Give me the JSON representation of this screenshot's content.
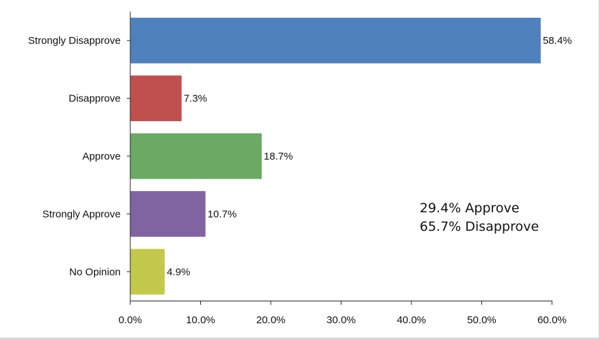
{
  "chart_data": {
    "type": "bar",
    "orientation": "horizontal",
    "categories": [
      "Strongly Disapprove",
      "Disapprove",
      "Approve",
      "Strongly Approve",
      "No Opinion"
    ],
    "values": [
      58.4,
      7.3,
      18.7,
      10.7,
      4.9
    ],
    "data_labels": [
      "58.4%",
      "7.3%",
      "18.7%",
      "10.7%",
      "4.9%"
    ],
    "colors": [
      "#4f81bd",
      "#c0504d",
      "#6aaa64",
      "#8064a2",
      "#c3c94b"
    ],
    "xlim": [
      0,
      60
    ],
    "x_ticks": [
      "0.0%",
      "10.0%",
      "20.0%",
      "30.0%",
      "40.0%",
      "50.0%",
      "60.0%"
    ],
    "grid": false,
    "annotations": [
      "29.4% Approve",
      "65.7% Disapprove"
    ]
  }
}
